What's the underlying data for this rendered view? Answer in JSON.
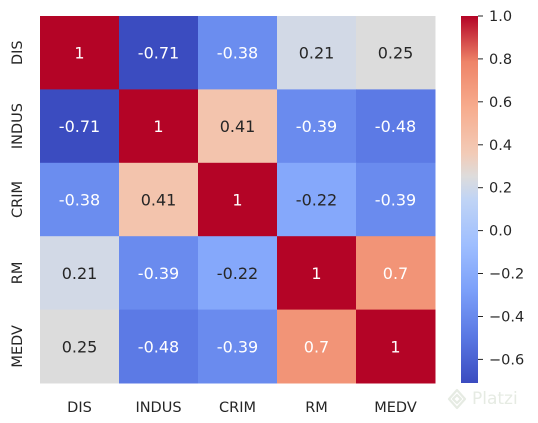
{
  "chart_data": {
    "type": "heatmap",
    "title": "",
    "xlabel": "",
    "ylabel": "",
    "x_categories": [
      "DIS",
      "INDUS",
      "CRIM",
      "RM",
      "MEDV"
    ],
    "y_categories": [
      "DIS",
      "INDUS",
      "CRIM",
      "RM",
      "MEDV"
    ],
    "values": [
      [
        1,
        -0.71,
        -0.38,
        0.21,
        0.25
      ],
      [
        -0.71,
        1,
        0.41,
        -0.39,
        -0.48
      ],
      [
        -0.38,
        0.41,
        1,
        -0.22,
        -0.39
      ],
      [
        0.21,
        -0.39,
        -0.22,
        1,
        0.7
      ],
      [
        0.25,
        -0.48,
        -0.39,
        0.7,
        1
      ]
    ],
    "annotations": [
      [
        "1",
        "-0.71",
        "-0.38",
        "0.21",
        "0.25"
      ],
      [
        "-0.71",
        "1",
        "0.41",
        "-0.39",
        "-0.48"
      ],
      [
        "-0.38",
        "0.41",
        "1",
        "-0.22",
        "-0.39"
      ],
      [
        "0.21",
        "-0.39",
        "-0.22",
        "1",
        "0.7"
      ],
      [
        "0.25",
        "-0.48",
        "-0.39",
        "0.7",
        "1"
      ]
    ],
    "colormap": "coolwarm",
    "vmin": -0.71,
    "vmax": 1,
    "colorbar_ticks": [
      1.0,
      0.8,
      0.6,
      0.4,
      0.2,
      0.0,
      -0.2,
      -0.4,
      -0.6
    ],
    "colorbar_tick_labels": [
      "1.0",
      "0.8",
      "0.6",
      "0.4",
      "0.2",
      "0.0",
      "−0.2",
      "−0.4",
      "−0.6"
    ]
  },
  "watermark": {
    "text": "Platzi",
    "icon": "platzi-logo-icon"
  }
}
